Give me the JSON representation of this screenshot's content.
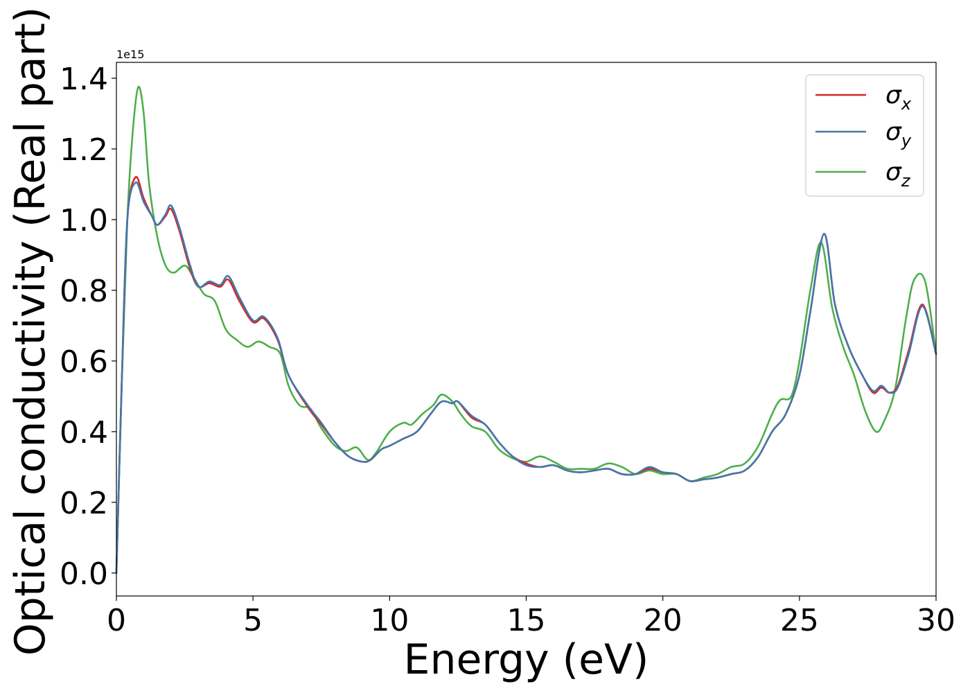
{
  "chart_data": {
    "type": "line",
    "xlabel": "Energy (eV)",
    "ylabel": "Optical conductivity (Real part)",
    "y_offset_label": "1e15",
    "xlim": [
      0,
      30
    ],
    "ylim": [
      -0.065,
      1.445
    ],
    "x_ticks": [
      0,
      5,
      10,
      15,
      20,
      25,
      30
    ],
    "x_tick_labels": [
      "0",
      "5",
      "10",
      "15",
      "20",
      "25",
      "30"
    ],
    "y_ticks": [
      0.0,
      0.2,
      0.4,
      0.6,
      0.8,
      1.0,
      1.2,
      1.4
    ],
    "y_tick_labels": [
      "0.0",
      "0.2",
      "0.4",
      "0.6",
      "0.8",
      "1.0",
      "1.2",
      "1.4"
    ],
    "grid": false,
    "legend_position": "top-right",
    "series": [
      {
        "name": "σx",
        "symbol": "σ",
        "subscript": "x",
        "color": "#d62728",
        "points": [
          [
            0,
            0
          ],
          [
            0.2,
            0.55
          ],
          [
            0.4,
            1.0
          ],
          [
            0.7,
            1.12
          ],
          [
            1.0,
            1.06
          ],
          [
            1.3,
            1.01
          ],
          [
            1.5,
            0.985
          ],
          [
            1.8,
            1.01
          ],
          [
            2.0,
            1.03
          ],
          [
            2.3,
            0.97
          ],
          [
            2.7,
            0.86
          ],
          [
            3.0,
            0.81
          ],
          [
            3.4,
            0.82
          ],
          [
            3.8,
            0.81
          ],
          [
            4.1,
            0.83
          ],
          [
            4.5,
            0.77
          ],
          [
            5.0,
            0.71
          ],
          [
            5.4,
            0.72
          ],
          [
            5.9,
            0.66
          ],
          [
            6.3,
            0.56
          ],
          [
            7.0,
            0.47
          ],
          [
            7.5,
            0.42
          ],
          [
            8.0,
            0.37
          ],
          [
            8.5,
            0.33
          ],
          [
            9.0,
            0.315
          ],
          [
            9.3,
            0.32
          ],
          [
            9.7,
            0.35
          ],
          [
            10.0,
            0.36
          ],
          [
            10.5,
            0.38
          ],
          [
            11.0,
            0.4
          ],
          [
            11.5,
            0.45
          ],
          [
            11.9,
            0.485
          ],
          [
            12.3,
            0.48
          ],
          [
            12.5,
            0.485
          ],
          [
            13.0,
            0.44
          ],
          [
            13.5,
            0.42
          ],
          [
            14.0,
            0.37
          ],
          [
            14.5,
            0.33
          ],
          [
            15.0,
            0.31
          ],
          [
            15.5,
            0.3
          ],
          [
            16.0,
            0.305
          ],
          [
            16.5,
            0.29
          ],
          [
            17.0,
            0.285
          ],
          [
            17.5,
            0.29
          ],
          [
            18.0,
            0.295
          ],
          [
            18.5,
            0.28
          ],
          [
            19.0,
            0.28
          ],
          [
            19.5,
            0.295
          ],
          [
            20.0,
            0.285
          ],
          [
            20.5,
            0.28
          ],
          [
            21.0,
            0.26
          ],
          [
            21.5,
            0.265
          ],
          [
            22.0,
            0.27
          ],
          [
            22.5,
            0.28
          ],
          [
            23.0,
            0.29
          ],
          [
            23.5,
            0.33
          ],
          [
            24.0,
            0.4
          ],
          [
            24.5,
            0.45
          ],
          [
            25.0,
            0.56
          ],
          [
            25.4,
            0.74
          ],
          [
            25.9,
            0.96
          ],
          [
            26.3,
            0.76
          ],
          [
            26.8,
            0.64
          ],
          [
            27.3,
            0.56
          ],
          [
            27.7,
            0.51
          ],
          [
            28.0,
            0.525
          ],
          [
            28.3,
            0.51
          ],
          [
            28.6,
            0.53
          ],
          [
            29.0,
            0.63
          ],
          [
            29.5,
            0.76
          ],
          [
            30.0,
            0.62
          ]
        ]
      },
      {
        "name": "σy",
        "symbol": "σ",
        "subscript": "y",
        "color": "#4477aa",
        "points": [
          [
            0,
            0
          ],
          [
            0.2,
            0.55
          ],
          [
            0.4,
            1.0
          ],
          [
            0.7,
            1.105
          ],
          [
            1.0,
            1.05
          ],
          [
            1.3,
            1.01
          ],
          [
            1.5,
            0.985
          ],
          [
            1.8,
            1.015
          ],
          [
            2.0,
            1.04
          ],
          [
            2.3,
            0.98
          ],
          [
            2.7,
            0.87
          ],
          [
            3.0,
            0.81
          ],
          [
            3.4,
            0.825
          ],
          [
            3.8,
            0.815
          ],
          [
            4.1,
            0.84
          ],
          [
            4.5,
            0.78
          ],
          [
            5.0,
            0.715
          ],
          [
            5.4,
            0.725
          ],
          [
            5.9,
            0.665
          ],
          [
            6.3,
            0.56
          ],
          [
            7.0,
            0.475
          ],
          [
            7.5,
            0.425
          ],
          [
            8.0,
            0.37
          ],
          [
            8.5,
            0.33
          ],
          [
            9.0,
            0.315
          ],
          [
            9.3,
            0.32
          ],
          [
            9.7,
            0.35
          ],
          [
            10.0,
            0.36
          ],
          [
            10.5,
            0.38
          ],
          [
            11.0,
            0.4
          ],
          [
            11.5,
            0.45
          ],
          [
            11.9,
            0.485
          ],
          [
            12.3,
            0.48
          ],
          [
            12.5,
            0.485
          ],
          [
            13.0,
            0.445
          ],
          [
            13.5,
            0.42
          ],
          [
            14.0,
            0.37
          ],
          [
            14.5,
            0.33
          ],
          [
            15.0,
            0.305
          ],
          [
            15.5,
            0.3
          ],
          [
            16.0,
            0.305
          ],
          [
            16.5,
            0.29
          ],
          [
            17.0,
            0.285
          ],
          [
            17.5,
            0.29
          ],
          [
            18.0,
            0.295
          ],
          [
            18.5,
            0.28
          ],
          [
            19.0,
            0.28
          ],
          [
            19.5,
            0.3
          ],
          [
            20.0,
            0.285
          ],
          [
            20.5,
            0.28
          ],
          [
            21.0,
            0.26
          ],
          [
            21.5,
            0.265
          ],
          [
            22.0,
            0.27
          ],
          [
            22.5,
            0.28
          ],
          [
            23.0,
            0.29
          ],
          [
            23.5,
            0.33
          ],
          [
            24.0,
            0.4
          ],
          [
            24.5,
            0.45
          ],
          [
            25.0,
            0.56
          ],
          [
            25.4,
            0.74
          ],
          [
            25.9,
            0.96
          ],
          [
            26.3,
            0.76
          ],
          [
            26.8,
            0.64
          ],
          [
            27.3,
            0.56
          ],
          [
            27.7,
            0.515
          ],
          [
            28.0,
            0.53
          ],
          [
            28.3,
            0.51
          ],
          [
            28.6,
            0.525
          ],
          [
            29.0,
            0.62
          ],
          [
            29.5,
            0.755
          ],
          [
            30.0,
            0.62
          ]
        ]
      },
      {
        "name": "σz",
        "symbol": "σ",
        "subscript": "z",
        "color": "#4daf4a",
        "points": [
          [
            0,
            0
          ],
          [
            0.2,
            0.55
          ],
          [
            0.4,
            1.0
          ],
          [
            0.6,
            1.25
          ],
          [
            0.8,
            1.375
          ],
          [
            1.0,
            1.3
          ],
          [
            1.2,
            1.1
          ],
          [
            1.5,
            0.95
          ],
          [
            1.8,
            0.87
          ],
          [
            2.1,
            0.85
          ],
          [
            2.5,
            0.87
          ],
          [
            2.8,
            0.84
          ],
          [
            3.2,
            0.79
          ],
          [
            3.6,
            0.77
          ],
          [
            4.0,
            0.69
          ],
          [
            4.4,
            0.66
          ],
          [
            4.8,
            0.64
          ],
          [
            5.2,
            0.655
          ],
          [
            5.6,
            0.64
          ],
          [
            6.0,
            0.62
          ],
          [
            6.3,
            0.53
          ],
          [
            6.7,
            0.475
          ],
          [
            7.1,
            0.465
          ],
          [
            7.5,
            0.41
          ],
          [
            8.0,
            0.36
          ],
          [
            8.4,
            0.345
          ],
          [
            8.8,
            0.355
          ],
          [
            9.2,
            0.32
          ],
          [
            9.5,
            0.34
          ],
          [
            10.0,
            0.4
          ],
          [
            10.5,
            0.425
          ],
          [
            10.8,
            0.42
          ],
          [
            11.2,
            0.45
          ],
          [
            11.6,
            0.475
          ],
          [
            11.9,
            0.505
          ],
          [
            12.3,
            0.485
          ],
          [
            12.6,
            0.45
          ],
          [
            13.0,
            0.415
          ],
          [
            13.5,
            0.4
          ],
          [
            14.0,
            0.35
          ],
          [
            14.5,
            0.325
          ],
          [
            15.0,
            0.315
          ],
          [
            15.5,
            0.33
          ],
          [
            16.0,
            0.315
          ],
          [
            16.5,
            0.295
          ],
          [
            17.0,
            0.295
          ],
          [
            17.5,
            0.295
          ],
          [
            18.0,
            0.31
          ],
          [
            18.5,
            0.3
          ],
          [
            19.0,
            0.28
          ],
          [
            19.5,
            0.29
          ],
          [
            20.0,
            0.28
          ],
          [
            20.5,
            0.28
          ],
          [
            21.0,
            0.26
          ],
          [
            21.5,
            0.27
          ],
          [
            22.0,
            0.28
          ],
          [
            22.5,
            0.3
          ],
          [
            23.0,
            0.31
          ],
          [
            23.5,
            0.36
          ],
          [
            24.0,
            0.45
          ],
          [
            24.3,
            0.49
          ],
          [
            24.7,
            0.5
          ],
          [
            25.0,
            0.6
          ],
          [
            25.4,
            0.8
          ],
          [
            25.8,
            0.935
          ],
          [
            26.2,
            0.75
          ],
          [
            26.6,
            0.64
          ],
          [
            27.0,
            0.56
          ],
          [
            27.4,
            0.46
          ],
          [
            27.8,
            0.4
          ],
          [
            28.1,
            0.43
          ],
          [
            28.5,
            0.52
          ],
          [
            28.9,
            0.72
          ],
          [
            29.2,
            0.83
          ],
          [
            29.6,
            0.825
          ],
          [
            30.0,
            0.62
          ]
        ]
      }
    ]
  }
}
